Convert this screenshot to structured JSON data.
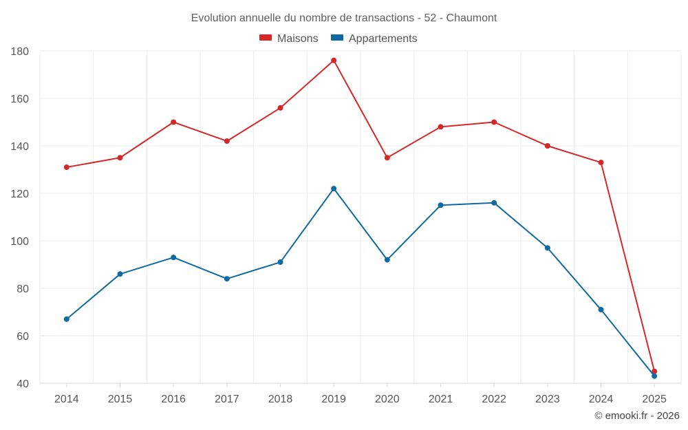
{
  "chart_data": {
    "type": "line",
    "title": "Evolution annuelle du nombre de transactions - 52 - Chaumont",
    "categories": [
      "2014",
      "2015",
      "2016",
      "2017",
      "2018",
      "2019",
      "2020",
      "2021",
      "2022",
      "2023",
      "2024",
      "2025"
    ],
    "ylim": [
      40,
      180
    ],
    "yticks": [
      40,
      60,
      80,
      100,
      120,
      140,
      160,
      180
    ],
    "grid": true,
    "legend_position": "top-center",
    "series": [
      {
        "name": "Maisons",
        "color": "#d62728",
        "values": [
          131,
          135,
          150,
          142,
          156,
          176,
          135,
          148,
          150,
          140,
          133,
          45
        ]
      },
      {
        "name": "Appartements",
        "color": "#0e6aa0",
        "values": [
          67,
          86,
          93,
          84,
          91,
          122,
          92,
          115,
          116,
          97,
          71,
          43
        ]
      }
    ],
    "credit": "© emooki.fr - 2026"
  }
}
